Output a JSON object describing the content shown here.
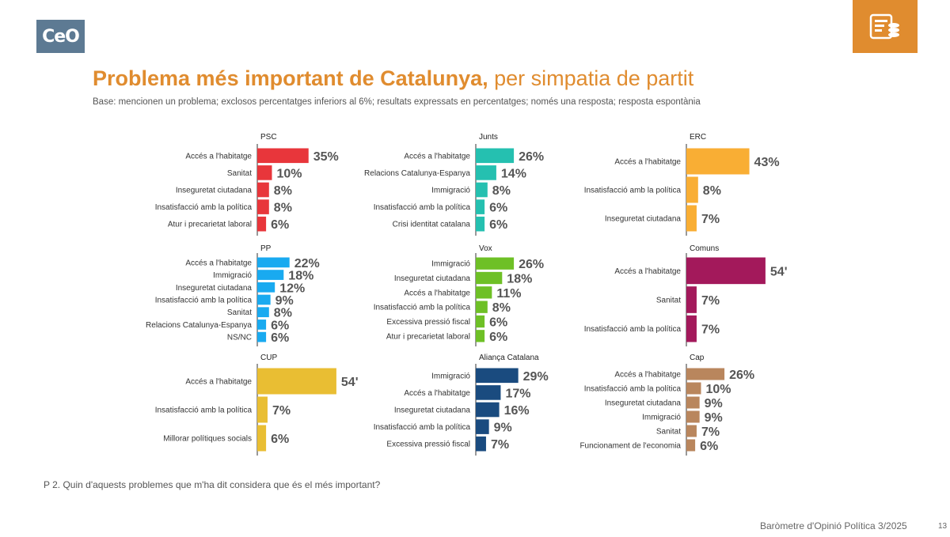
{
  "title": {
    "bold": "Problema més important de Catalunya,",
    "normal": " per simpatia de partit"
  },
  "subtitle": "Base: mencionen un problema; exclosos percentatges inferiors al 6%; resultats expressats en percentatges; només una resposta; resposta espontània",
  "logo_text": "CeO",
  "question": "P 2. Quin d'aquests problemes que m'ha dit considera que és el més important?",
  "footer": "Baròmetre d'Opinió Política 3/2025",
  "page_number": "13",
  "corner_icon": "database-coins-icon",
  "chart_data": [
    {
      "type": "bar",
      "orientation": "horizontal",
      "title": "PSC",
      "color": "#e8363b",
      "categories": [
        "Accés a l'habitatge",
        "Sanitat",
        "Inseguretat ciutadana",
        "Insatisfacció amb la política",
        "Atur i precarietat laboral"
      ],
      "values": [
        35,
        10,
        8,
        8,
        6
      ],
      "labels": [
        "35%",
        "10%",
        "8%",
        "8%",
        "6%"
      ]
    },
    {
      "type": "bar",
      "orientation": "horizontal",
      "title": "Junts",
      "color": "#25c0b0",
      "categories": [
        "Accés a l'habitatge",
        "Relacions Catalunya-Espanya",
        "Immigració",
        "Insatisfacció amb la política",
        "Crisi identitat catalana"
      ],
      "values": [
        26,
        14,
        8,
        6,
        6
      ],
      "labels": [
        "26%",
        "14%",
        "8%",
        "6%",
        "6%"
      ]
    },
    {
      "type": "bar",
      "orientation": "horizontal",
      "title": "ERC",
      "color": "#f9ae34",
      "categories": [
        "Accés a l'habitatge",
        "Insatisfacció amb la política",
        "Inseguretat ciutadana"
      ],
      "values": [
        43,
        8,
        7
      ],
      "labels": [
        "43%",
        "8%",
        "7%"
      ]
    },
    {
      "type": "bar",
      "orientation": "horizontal",
      "title": "PP",
      "color": "#19aaf0",
      "categories": [
        "Accés a l'habitatge",
        "Immigració",
        "Inseguretat ciutadana",
        "Insatisfacció amb la política",
        "Sanitat",
        "Relacions Catalunya-Espanya",
        "NS/NC"
      ],
      "values": [
        22,
        18,
        12,
        9,
        8,
        6,
        6
      ],
      "labels": [
        "22%",
        "18%",
        "12%",
        "9%",
        "8%",
        "6%",
        "6%"
      ]
    },
    {
      "type": "bar",
      "orientation": "horizontal",
      "title": "Vox",
      "color": "#6ec026",
      "categories": [
        "Immigració",
        "Inseguretat ciutadana",
        "Accés a l'habitatge",
        "Insatisfacció amb la política",
        "Excessiva pressió fiscal",
        "Atur i precarietat laboral"
      ],
      "values": [
        26,
        18,
        11,
        8,
        6,
        6
      ],
      "labels": [
        "26%",
        "18%",
        "11%",
        "8%",
        "6%",
        "6%"
      ]
    },
    {
      "type": "bar",
      "orientation": "horizontal",
      "title": "Comuns",
      "color": "#a3195b",
      "categories": [
        "Accés a l'habitatge",
        "Sanitat",
        "Insatisfacció amb la política"
      ],
      "values": [
        54,
        7,
        7
      ],
      "labels": [
        "54'",
        "7%",
        "7%"
      ]
    },
    {
      "type": "bar",
      "orientation": "horizontal",
      "title": "CUP",
      "color": "#e9be33",
      "categories": [
        "Accés a l'habitatge",
        "Insatisfacció amb la política",
        "Millorar polítiques socials"
      ],
      "values": [
        54,
        7,
        6
      ],
      "labels": [
        "54'",
        "7%",
        "6%"
      ]
    },
    {
      "type": "bar",
      "orientation": "horizontal",
      "title": "Aliança Catalana",
      "color": "#1a4b7f",
      "categories": [
        "Immigració",
        "Accés a l'habitatge",
        "Inseguretat ciutadana",
        "Insatisfacció amb la política",
        "Excessiva pressió fiscal"
      ],
      "values": [
        29,
        17,
        16,
        9,
        7
      ],
      "labels": [
        "29%",
        "17%",
        "16%",
        "9%",
        "7%"
      ]
    },
    {
      "type": "bar",
      "orientation": "horizontal",
      "title": "Cap",
      "color": "#b9865d",
      "categories": [
        "Accés a l'habitatge",
        "Insatisfacció amb la política",
        "Inseguretat ciutadana",
        "Immigració",
        "Sanitat",
        "Funcionament de l'economia"
      ],
      "values": [
        26,
        10,
        9,
        9,
        7,
        6
      ],
      "labels": [
        "26%",
        "10%",
        "9%",
        "9%",
        "7%",
        "6%"
      ]
    }
  ]
}
